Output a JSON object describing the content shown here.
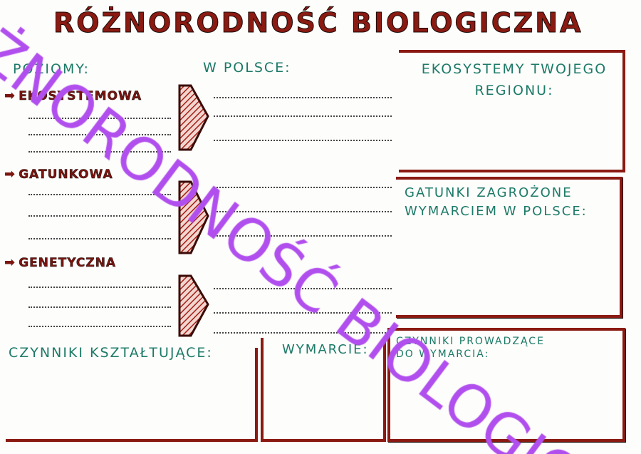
{
  "title": "RÓŻNORODNOŚĆ BIOLOGICZNA",
  "headers": {
    "levels": "POZIOMY:",
    "in_poland": "W POLSCE:",
    "ecosystems": "EKOSYSTEMY TWOJEGO REGIONU:",
    "endangered": "GATUNKI ZAGROŻONE WYMARCIEM W POLSCE:",
    "factors": "CZYNNIKI KSZTAŁTUJĄCE:",
    "extinction": "WYMARCIE:",
    "extinction_causes": "CZYNNIKI PROWADZĄCE DO WYMARCIA:"
  },
  "levels": [
    {
      "label": "EKOSYSTEMOWA",
      "icon": "arrow-right-icon"
    },
    {
      "label": "GATUNKOWA",
      "icon": "arrow-right-icon"
    },
    {
      "label": "GENETYCZNA",
      "icon": "arrow-right-icon"
    }
  ],
  "watermark": "RÓŻNORODNOŚĆ BIOLOGICZNA",
  "colors": {
    "frame": "#8a1a12",
    "labels": "#1d7a68",
    "watermark": "#b14fee"
  }
}
